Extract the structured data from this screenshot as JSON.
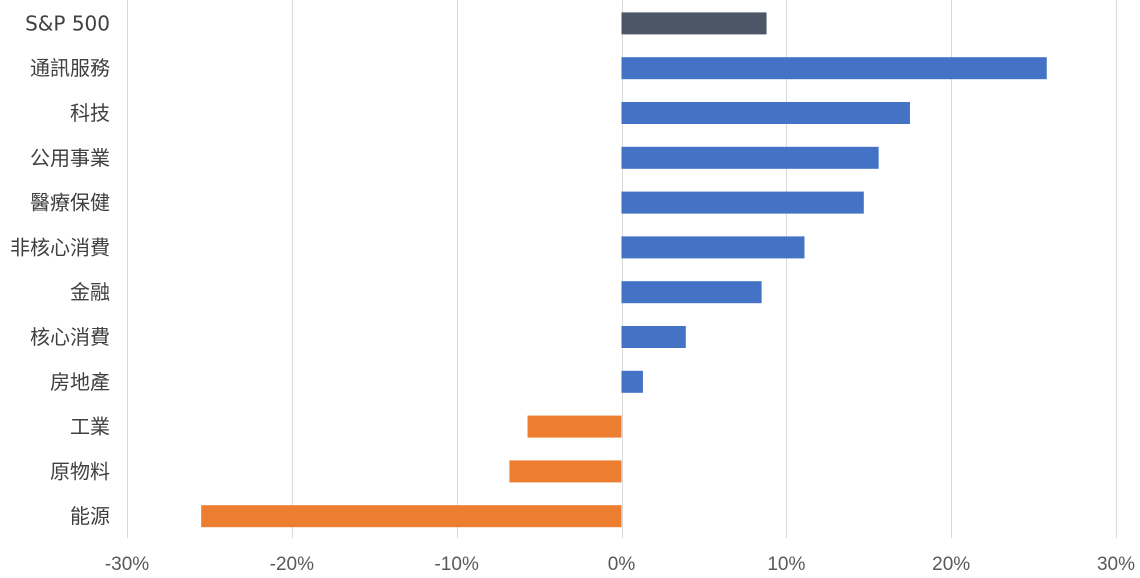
{
  "chart_data": {
    "type": "bar",
    "orientation": "horizontal",
    "title": "",
    "xlabel": "",
    "ylabel": "",
    "categories": [
      "S&P 500",
      "通訊服務",
      "科技",
      "公用事業",
      "醫療保健",
      "非核心消費",
      "金融",
      "核心消費",
      "房地產",
      "工業",
      "原物料",
      "能源"
    ],
    "values": [
      8.8,
      25.8,
      17.5,
      15.6,
      14.7,
      11.1,
      8.5,
      3.9,
      1.3,
      -5.7,
      -6.8,
      -25.5
    ],
    "xlim": [
      -30,
      30
    ],
    "xticks": [
      -30,
      -20,
      -10,
      0,
      10,
      20,
      30
    ],
    "xtick_labels": [
      "-30%",
      "-20%",
      "-10%",
      "0%",
      "10%",
      "20%",
      "30%"
    ],
    "grid": "vertical",
    "legend": "none",
    "colors": {
      "benchmark": "#4d5666",
      "positive": "#4472c4",
      "negative": "#ed7d31",
      "grid": "#d9d9d9",
      "text": "#404040"
    }
  }
}
